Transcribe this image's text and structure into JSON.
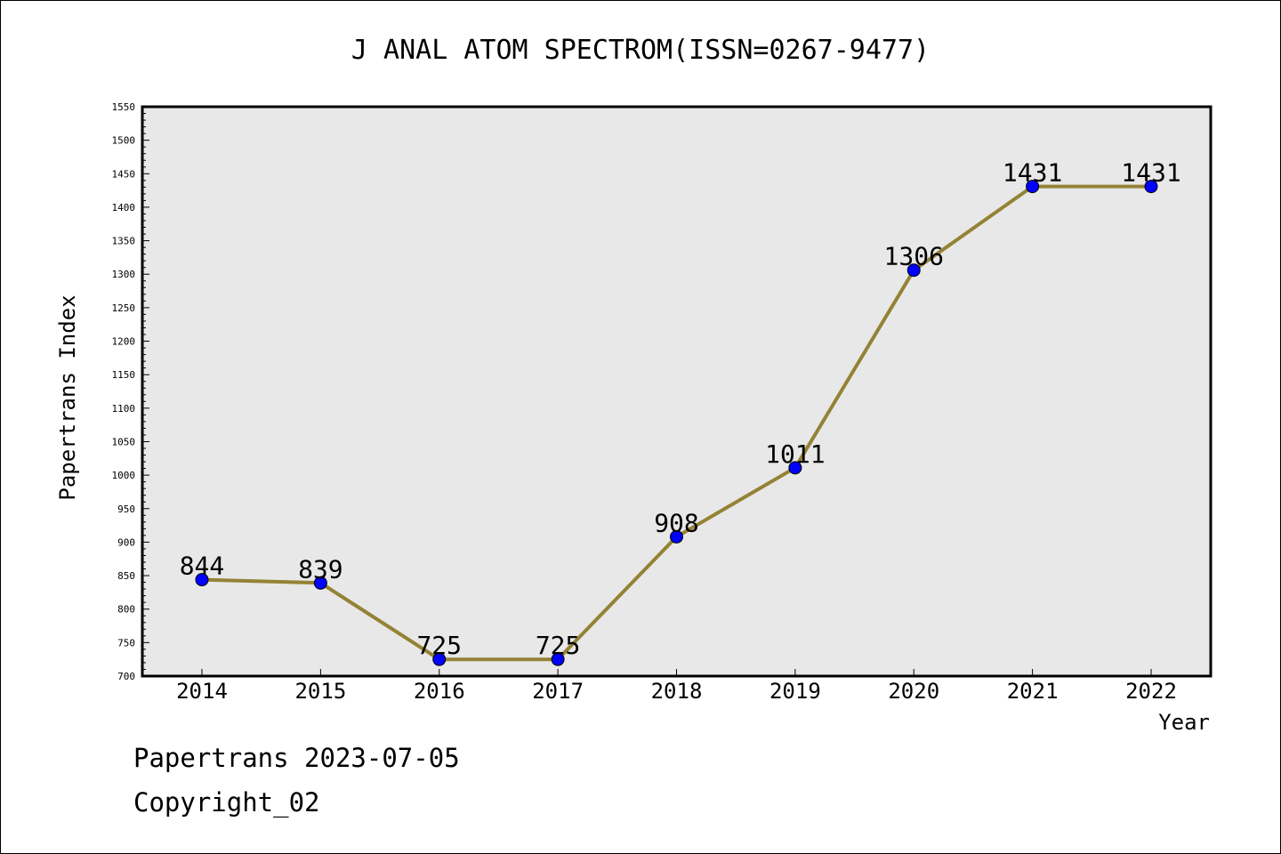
{
  "chart_data": {
    "type": "line",
    "title": "J ANAL ATOM SPECTROM(ISSN=0267-9477)",
    "xlabel": "Year",
    "ylabel": "Papertrans Index",
    "categories": [
      "2014",
      "2015",
      "2016",
      "2017",
      "2018",
      "2019",
      "2020",
      "2021",
      "2022"
    ],
    "series": [
      {
        "values": [
          844,
          839,
          725,
          725,
          908,
          1011,
          1306,
          1431,
          1431
        ]
      }
    ],
    "data_labels": [
      "844",
      "839",
      "725",
      "725",
      "908",
      "1011",
      "1306",
      "1431",
      "1431"
    ],
    "ylim": [
      700,
      1550
    ],
    "y_ticks": [
      "700",
      "750",
      "800",
      "850",
      "900",
      "950",
      "1000",
      "1050",
      "1100",
      "1150",
      "1200",
      "1250",
      "1300",
      "1350",
      "1400",
      "1450",
      "1500",
      "1550"
    ],
    "grid": false,
    "legend": "none",
    "colors": {
      "line": "#948235",
      "marker": "#0000ff",
      "plot_background": "#e8e8e8"
    }
  },
  "footer": {
    "line1": "Papertrans 2023-07-05",
    "line2": "Copyright_02"
  }
}
